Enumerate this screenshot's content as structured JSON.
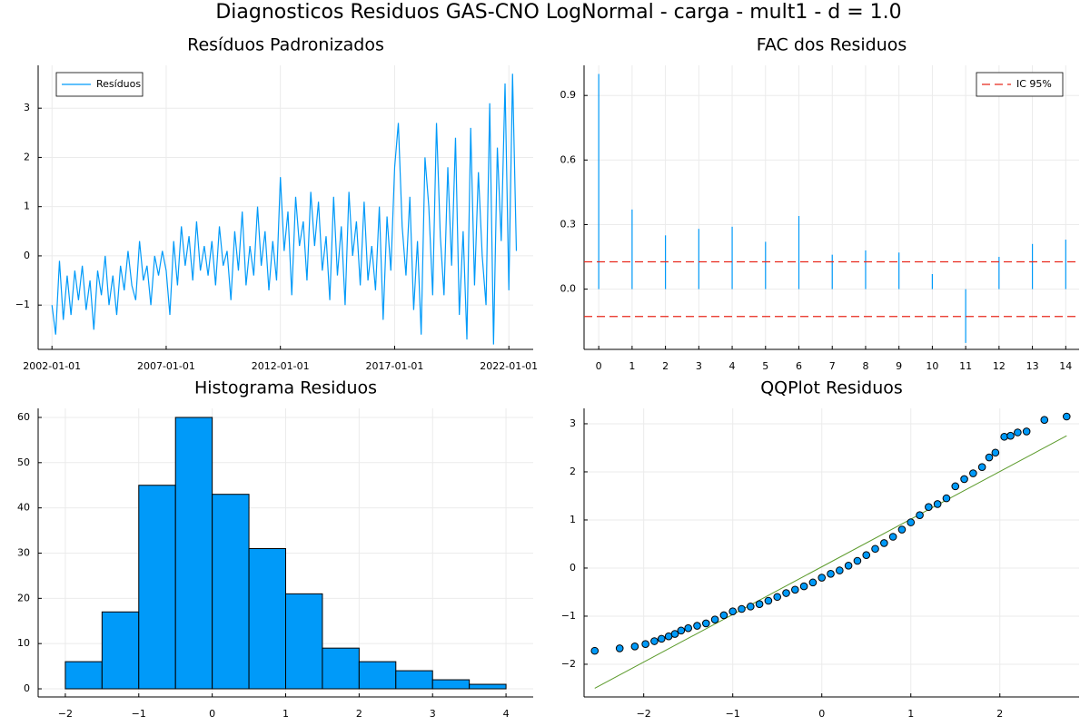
{
  "title": "Diagnosticos Residuos  GAS-CNO LogNormal - carga - mult1 - d = 1.0",
  "chart_data": [
    {
      "type": "line",
      "title": "Resíduos Padronizados",
      "legend": "top-left",
      "grid": true,
      "x": [
        "2002-01-01",
        "2002-03-01",
        "2002-05-01",
        "2002-07-01",
        "2002-09-01",
        "2002-11-01",
        "2003-01-01",
        "2003-03-01",
        "2003-05-01",
        "2003-07-01",
        "2003-09-01",
        "2003-11-01",
        "2004-01-01",
        "2004-03-01",
        "2004-05-01",
        "2004-07-01",
        "2004-09-01",
        "2004-11-01",
        "2005-01-01",
        "2005-03-01",
        "2005-05-01",
        "2005-07-01",
        "2005-09-01",
        "2005-11-01",
        "2006-01-01",
        "2006-03-01",
        "2006-05-01",
        "2006-07-01",
        "2006-09-01",
        "2006-11-01",
        "2007-01-01",
        "2007-03-01",
        "2007-05-01",
        "2007-07-01",
        "2007-09-01",
        "2007-11-01",
        "2008-01-01",
        "2008-03-01",
        "2008-05-01",
        "2008-07-01",
        "2008-09-01",
        "2008-11-01",
        "2009-01-01",
        "2009-03-01",
        "2009-05-01",
        "2009-07-01",
        "2009-09-01",
        "2009-11-01",
        "2010-01-01",
        "2010-03-01",
        "2010-05-01",
        "2010-07-01",
        "2010-09-01",
        "2010-11-01",
        "2011-01-01",
        "2011-03-01",
        "2011-05-01",
        "2011-07-01",
        "2011-09-01",
        "2011-11-01",
        "2012-01-01",
        "2012-03-01",
        "2012-05-01",
        "2012-07-01",
        "2012-09-01",
        "2012-11-01",
        "2013-01-01",
        "2013-03-01",
        "2013-05-01",
        "2013-07-01",
        "2013-09-01",
        "2013-11-01",
        "2014-01-01",
        "2014-03-01",
        "2014-05-01",
        "2014-07-01",
        "2014-09-01",
        "2014-11-01",
        "2015-01-01",
        "2015-03-01",
        "2015-05-01",
        "2015-07-01",
        "2015-09-01",
        "2015-11-01",
        "2016-01-01",
        "2016-03-01",
        "2016-05-01",
        "2016-07-01",
        "2016-09-01",
        "2016-11-01",
        "2017-01-01",
        "2017-03-01",
        "2017-05-01",
        "2017-07-01",
        "2017-09-01",
        "2017-11-01",
        "2018-01-01",
        "2018-03-01",
        "2018-05-01",
        "2018-07-01",
        "2018-09-01",
        "2018-11-01",
        "2019-01-01",
        "2019-03-01",
        "2019-05-01",
        "2019-07-01",
        "2019-09-01",
        "2019-11-01",
        "2020-01-01",
        "2020-03-01",
        "2020-05-01",
        "2020-07-01",
        "2020-09-01",
        "2020-11-01",
        "2021-01-01",
        "2021-03-01",
        "2021-05-01",
        "2021-07-01",
        "2021-09-01",
        "2021-11-01",
        "2022-01-01",
        "2022-03-01",
        "2022-05-01"
      ],
      "series": [
        {
          "name": "Resíduos",
          "color": "#009af9",
          "values": [
            -1.0,
            -1.6,
            -0.1,
            -1.3,
            -0.4,
            -1.2,
            -0.3,
            -0.9,
            -0.2,
            -1.1,
            -0.5,
            -1.5,
            -0.3,
            -0.8,
            0.0,
            -1.0,
            -0.4,
            -1.2,
            -0.2,
            -0.7,
            0.1,
            -0.6,
            -0.9,
            0.3,
            -0.5,
            -0.2,
            -1.0,
            0.0,
            -0.4,
            0.1,
            -0.3,
            -1.2,
            0.3,
            -0.6,
            0.6,
            -0.2,
            0.4,
            -0.5,
            0.7,
            -0.3,
            0.2,
            -0.4,
            0.3,
            -0.6,
            0.6,
            -0.2,
            0.1,
            -0.9,
            0.5,
            -0.3,
            0.9,
            -0.6,
            0.2,
            -0.4,
            1.0,
            -0.2,
            0.5,
            -0.7,
            0.3,
            -0.5,
            1.6,
            0.1,
            0.9,
            -0.8,
            1.2,
            0.2,
            0.7,
            -0.5,
            1.3,
            0.2,
            1.1,
            -0.3,
            0.4,
            -0.9,
            1.2,
            -0.4,
            0.6,
            -1.0,
            1.3,
            0.0,
            0.7,
            -0.6,
            1.1,
            -0.5,
            0.2,
            -0.7,
            1.0,
            -1.3,
            0.8,
            -0.3,
            1.8,
            2.7,
            0.6,
            -0.4,
            1.2,
            -1.1,
            0.3,
            -1.6,
            2.0,
            1.0,
            -0.8,
            2.7,
            0.4,
            -0.8,
            1.8,
            -0.2,
            2.4,
            -1.2,
            0.5,
            -1.7,
            2.6,
            -0.6,
            1.7,
            0.0,
            -1.0,
            3.1,
            -1.8,
            2.2,
            0.3,
            3.5,
            -0.7,
            3.7,
            0.1
          ]
        }
      ],
      "xlim": [
        "2001-05-25",
        "2023-01-25"
      ],
      "xticks": [
        "2002-01-01",
        "2007-01-01",
        "2012-01-01",
        "2017-01-01",
        "2022-01-01"
      ],
      "ylim": [
        -1.9,
        3.87
      ],
      "yticks": [
        {
          "value": -1,
          "label": "−1"
        },
        0,
        1,
        2,
        3
      ]
    },
    {
      "type": "stem",
      "title": "FAC dos Residuos",
      "legend": "top-right",
      "grid": true,
      "x": [
        0,
        1,
        2,
        3,
        4,
        5,
        6,
        7,
        8,
        9,
        10,
        11,
        12,
        13,
        14
      ],
      "values": [
        1.0,
        0.37,
        0.25,
        0.28,
        0.29,
        0.22,
        0.34,
        0.16,
        0.18,
        0.17,
        0.07,
        -0.25,
        0.15,
        0.21,
        0.23
      ],
      "color": "#009af9",
      "ci": {
        "name": "IC 95%",
        "color": "#e8291c",
        "values": [
          0.127,
          -0.127
        ]
      },
      "xlim": [
        -0.44,
        14.4
      ],
      "xticks": [
        0,
        1,
        2,
        3,
        4,
        5,
        6,
        7,
        8,
        9,
        10,
        11,
        12,
        13,
        14
      ],
      "ylim": [
        -0.28,
        1.04
      ],
      "yticks": [
        {
          "value": 0,
          "label": "0.0"
        },
        0.3,
        0.6,
        0.9
      ]
    },
    {
      "type": "histogram",
      "title": "Histograma Residuos",
      "grid": true,
      "color": "#009af9",
      "bins": [
        -2,
        -1.5,
        -1,
        -0.5,
        0,
        0.5,
        1,
        1.5,
        2,
        2.5,
        3,
        3.5,
        4
      ],
      "counts": [
        6,
        17,
        45,
        60,
        43,
        31,
        21,
        9,
        6,
        4,
        2,
        1
      ],
      "xlim": [
        -2.37,
        4.37
      ],
      "xticks": [
        {
          "value": -2,
          "label": "−2"
        },
        {
          "value": -1,
          "label": "−1"
        },
        0,
        1,
        2,
        3,
        4
      ],
      "ylim": [
        -1.8,
        62
      ],
      "yticks": [
        0,
        10,
        20,
        30,
        40,
        50,
        60
      ]
    },
    {
      "type": "scatter",
      "title": "QQPlot Residuos",
      "grid": true,
      "color": "#009af9",
      "x": [
        -2.55,
        -2.27,
        -2.1,
        -1.98,
        -1.88,
        -1.8,
        -1.72,
        -1.65,
        -1.58,
        -1.5,
        -1.4,
        -1.3,
        -1.2,
        -1.1,
        -1.0,
        -0.9,
        -0.8,
        -0.7,
        -0.6,
        -0.5,
        -0.4,
        -0.3,
        -0.2,
        -0.1,
        0.0,
        0.1,
        0.2,
        0.3,
        0.4,
        0.5,
        0.6,
        0.7,
        0.8,
        0.9,
        1.0,
        1.1,
        1.2,
        1.3,
        1.4,
        1.5,
        1.6,
        1.7,
        1.8,
        1.88,
        1.95,
        2.05,
        2.12,
        2.2,
        2.3,
        2.5,
        2.75
      ],
      "y": [
        -1.72,
        -1.67,
        -1.63,
        -1.58,
        -1.52,
        -1.47,
        -1.42,
        -1.37,
        -1.3,
        -1.25,
        -1.2,
        -1.15,
        -1.07,
        -0.98,
        -0.9,
        -0.85,
        -0.8,
        -0.75,
        -0.68,
        -0.6,
        -0.52,
        -0.45,
        -0.38,
        -0.3,
        -0.2,
        -0.12,
        -0.05,
        0.05,
        0.15,
        0.27,
        0.4,
        0.52,
        0.65,
        0.8,
        0.95,
        1.1,
        1.27,
        1.33,
        1.45,
        1.7,
        1.85,
        1.97,
        2.1,
        2.3,
        2.4,
        2.73,
        2.75,
        2.82,
        2.84,
        3.08,
        3.15
      ],
      "reference_line": {
        "color": "#5b9a2a",
        "x": [
          -2.55,
          2.75
        ],
        "y": [
          -2.5,
          2.75
        ]
      },
      "xlim": [
        -2.67,
        2.89
      ],
      "xticks": [
        {
          "value": -2,
          "label": "−2"
        },
        {
          "value": -1,
          "label": "−1"
        },
        0,
        1,
        2
      ],
      "ylim": [
        -2.68,
        3.32
      ],
      "yticks": [
        {
          "value": -2,
          "label": "−2"
        },
        {
          "value": -1,
          "label": "−1"
        },
        0,
        1,
        2,
        3
      ]
    }
  ]
}
